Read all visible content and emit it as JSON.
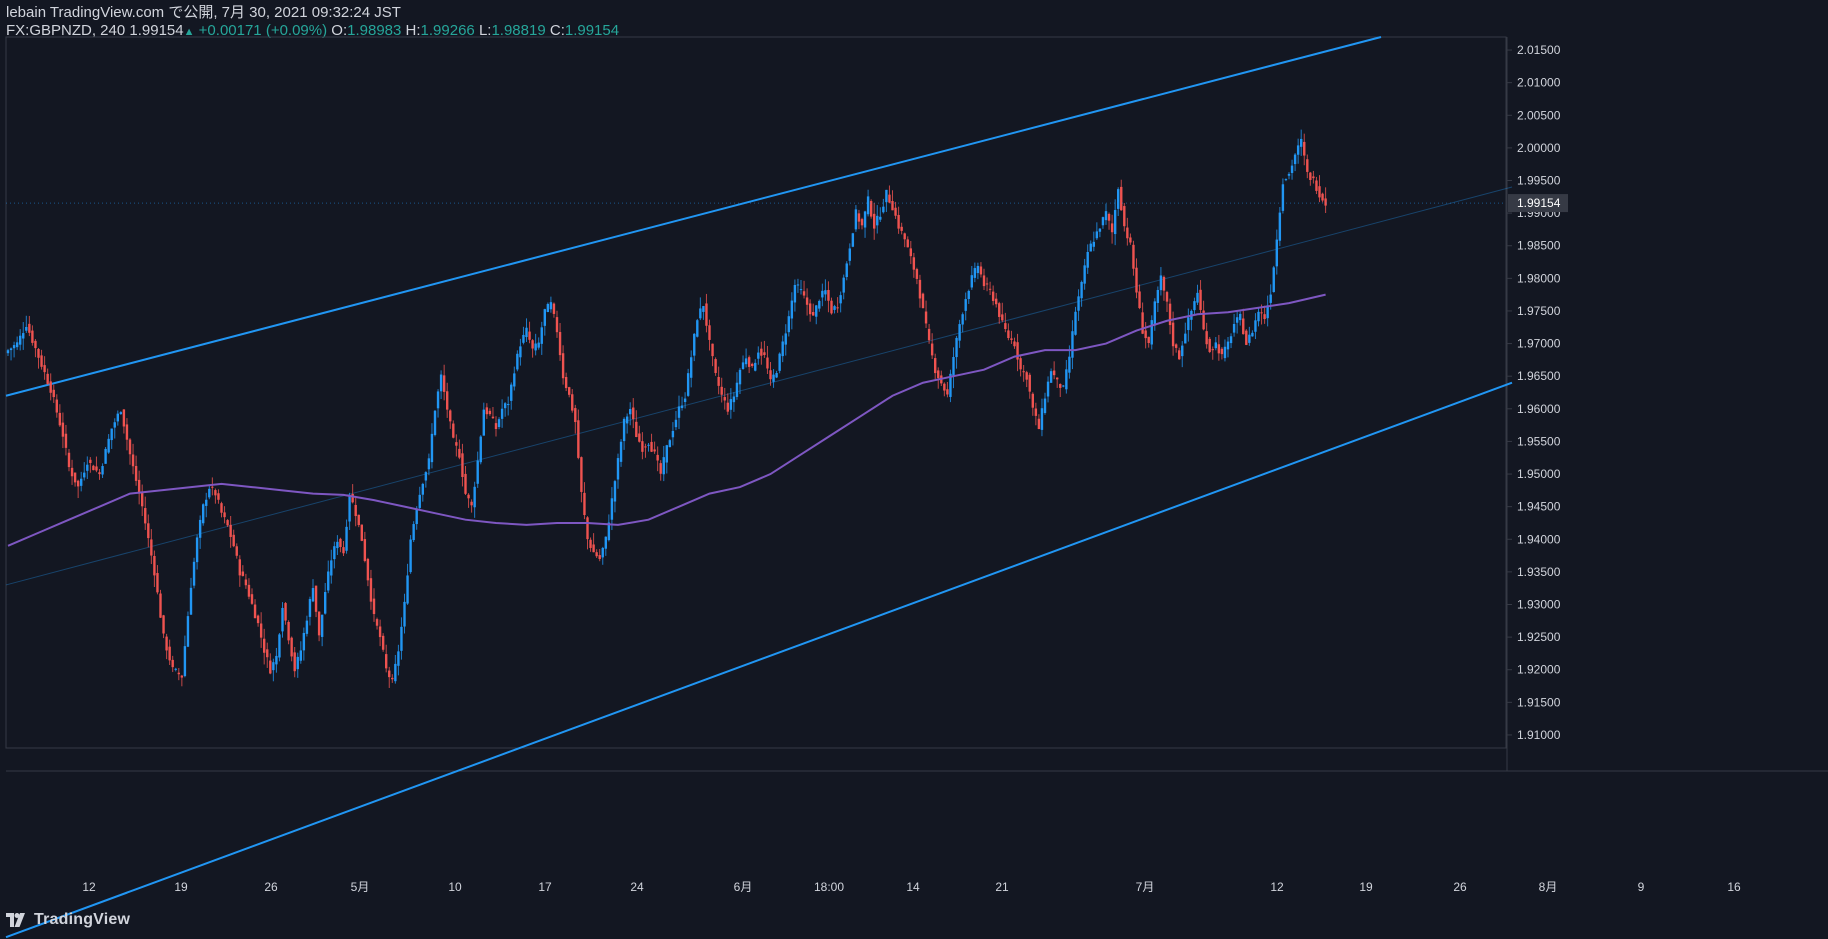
{
  "header": {
    "line1": "lebain TradingView.com で公開, 7月 30, 2021 09:32:24 JST",
    "symbol": "FX:GBPNZD, 240",
    "last": "1.99154",
    "change_arrow": "▲",
    "change": "+0.00171 (+0.09%)",
    "o_label": "O:",
    "o_value": "1.98983",
    "h_label": "H:",
    "h_value": "1.99266",
    "l_label": "L:",
    "l_value": "1.98819",
    "c_label": "C:",
    "c_value": "1.99154"
  },
  "footer": {
    "logo_text": "TradingView"
  },
  "colors": {
    "background": "#131722",
    "up": "#2196f3",
    "down": "#ef5350",
    "ma": "#7e57c2",
    "channel": "#2196f3",
    "axis_text": "#d1d4dc",
    "axis_line": "#363a45",
    "price_label_bg": "#363a45"
  },
  "chart_data": {
    "type": "candlestick",
    "symbol": "FX:GBPNZD",
    "timeframe": "240",
    "ylim": [
      1.908,
      2.017
    ],
    "y_ticks": [
      "1.91000",
      "1.91500",
      "1.92000",
      "1.92500",
      "1.93000",
      "1.93500",
      "1.94000",
      "1.94500",
      "1.95000",
      "1.95500",
      "1.96000",
      "1.96500",
      "1.97000",
      "1.97500",
      "1.98000",
      "1.98500",
      "1.99000",
      "1.99500",
      "2.00000",
      "2.00500",
      "2.01000",
      "2.01500"
    ],
    "x_ticks": [
      "12",
      "19",
      "26",
      "5月",
      "10",
      "17",
      "24",
      "6月",
      "18:00",
      "14",
      "21",
      "7月",
      "12",
      "19",
      "26",
      "8月",
      "9",
      "16"
    ],
    "current_price": "1.99154",
    "close_path": [
      [
        0,
        1.969
      ],
      [
        3,
        1.97
      ],
      [
        6,
        1.973
      ],
      [
        10,
        1.968
      ],
      [
        14,
        1.963
      ],
      [
        18,
        1.956
      ],
      [
        20,
        1.951
      ],
      [
        23,
        1.948
      ],
      [
        26,
        1.952
      ],
      [
        30,
        1.95
      ],
      [
        34,
        1.957
      ],
      [
        37,
        1.96
      ],
      [
        40,
        1.953
      ],
      [
        44,
        1.945
      ],
      [
        48,
        1.935
      ],
      [
        51,
        1.925
      ],
      [
        54,
        1.92
      ],
      [
        57,
        1.919
      ],
      [
        60,
        1.933
      ],
      [
        62,
        1.94
      ],
      [
        64,
        1.945
      ],
      [
        66,
        1.948
      ],
      [
        68,
        1.947
      ],
      [
        70,
        1.944
      ],
      [
        72,
        1.942
      ],
      [
        74,
        1.939
      ],
      [
        76,
        1.935
      ],
      [
        78,
        1.933
      ],
      [
        80,
        1.93
      ],
      [
        82,
        1.927
      ],
      [
        84,
        1.923
      ],
      [
        86,
        1.92
      ],
      [
        88,
        1.922
      ],
      [
        90,
        1.93
      ],
      [
        92,
        1.925
      ],
      [
        94,
        1.92
      ],
      [
        96,
        1.923
      ],
      [
        98,
        1.928
      ],
      [
        100,
        1.933
      ],
      [
        102,
        1.925
      ],
      [
        104,
        1.932
      ],
      [
        106,
        1.937
      ],
      [
        108,
        1.94
      ],
      [
        110,
        1.938
      ],
      [
        112,
        1.947
      ],
      [
        114,
        1.944
      ],
      [
        116,
        1.94
      ],
      [
        118,
        1.934
      ],
      [
        120,
        1.928
      ],
      [
        122,
        1.925
      ],
      [
        124,
        1.92
      ],
      [
        126,
        1.918
      ],
      [
        128,
        1.923
      ],
      [
        130,
        1.93
      ],
      [
        132,
        1.94
      ],
      [
        134,
        1.945
      ],
      [
        136,
        1.949
      ],
      [
        138,
        1.952
      ],
      [
        140,
        1.96
      ],
      [
        142,
        1.965
      ],
      [
        144,
        1.96
      ],
      [
        146,
        1.955
      ],
      [
        148,
        1.953
      ],
      [
        150,
        1.947
      ],
      [
        152,
        1.945
      ],
      [
        154,
        1.952
      ],
      [
        156,
        1.96
      ],
      [
        158,
        1.959
      ],
      [
        160,
        1.957
      ],
      [
        162,
        1.96
      ],
      [
        164,
        1.961
      ],
      [
        166,
        1.966
      ],
      [
        168,
        1.97
      ],
      [
        170,
        1.972
      ],
      [
        172,
        1.969
      ],
      [
        174,
        1.97
      ],
      [
        176,
        1.975
      ],
      [
        178,
        1.976
      ],
      [
        180,
        1.972
      ],
      [
        182,
        1.965
      ],
      [
        184,
        1.962
      ],
      [
        186,
        1.958
      ],
      [
        188,
        1.947
      ],
      [
        190,
        1.94
      ],
      [
        192,
        1.938
      ],
      [
        194,
        1.937
      ],
      [
        196,
        1.94
      ],
      [
        198,
        1.946
      ],
      [
        200,
        1.952
      ],
      [
        202,
        1.958
      ],
      [
        204,
        1.96
      ],
      [
        206,
        1.956
      ],
      [
        208,
        1.954
      ],
      [
        210,
        1.955
      ],
      [
        212,
        1.953
      ],
      [
        214,
        1.95
      ],
      [
        216,
        1.954
      ],
      [
        218,
        1.957
      ],
      [
        220,
        1.96
      ],
      [
        222,
        1.962
      ],
      [
        224,
        1.968
      ],
      [
        226,
        1.974
      ],
      [
        228,
        1.976
      ],
      [
        230,
        1.97
      ],
      [
        232,
        1.965
      ],
      [
        234,
        1.962
      ],
      [
        236,
        1.96
      ],
      [
        238,
        1.962
      ],
      [
        240,
        1.966
      ],
      [
        242,
        1.968
      ],
      [
        244,
        1.966
      ],
      [
        246,
        1.969
      ],
      [
        248,
        1.968
      ],
      [
        250,
        1.964
      ],
      [
        252,
        1.966
      ],
      [
        254,
        1.97
      ],
      [
        256,
        1.974
      ],
      [
        258,
        1.979
      ],
      [
        260,
        1.978
      ],
      [
        262,
        1.976
      ],
      [
        264,
        1.974
      ],
      [
        266,
        1.977
      ],
      [
        268,
        1.978
      ],
      [
        270,
        1.975
      ],
      [
        272,
        1.976
      ],
      [
        274,
        1.98
      ],
      [
        276,
        1.985
      ],
      [
        278,
        1.99
      ],
      [
        280,
        1.988
      ],
      [
        282,
        1.992
      ],
      [
        284,
        1.988
      ],
      [
        286,
        1.99
      ],
      [
        288,
        1.993
      ],
      [
        290,
        1.991
      ],
      [
        292,
        1.988
      ],
      [
        294,
        1.986
      ],
      [
        296,
        1.983
      ],
      [
        298,
        1.98
      ],
      [
        300,
        1.975
      ],
      [
        302,
        1.97
      ],
      [
        304,
        1.966
      ],
      [
        306,
        1.964
      ],
      [
        308,
        1.962
      ],
      [
        310,
        1.968
      ],
      [
        312,
        1.973
      ],
      [
        314,
        1.977
      ],
      [
        316,
        1.98
      ],
      [
        318,
        1.982
      ],
      [
        320,
        1.979
      ],
      [
        322,
        1.978
      ],
      [
        324,
        1.976
      ],
      [
        326,
        1.973
      ],
      [
        328,
        1.971
      ],
      [
        330,
        1.97
      ],
      [
        332,
        1.966
      ],
      [
        334,
        1.965
      ],
      [
        336,
        1.96
      ],
      [
        338,
        1.957
      ],
      [
        340,
        1.962
      ],
      [
        342,
        1.966
      ],
      [
        344,
        1.964
      ],
      [
        346,
        1.963
      ],
      [
        348,
        1.968
      ],
      [
        350,
        1.975
      ],
      [
        352,
        1.979
      ],
      [
        354,
        1.984
      ],
      [
        356,
        1.986
      ],
      [
        358,
        1.988
      ],
      [
        360,
        1.99
      ],
      [
        362,
        1.987
      ],
      [
        364,
        1.994
      ],
      [
        366,
        1.988
      ],
      [
        368,
        1.985
      ],
      [
        370,
        1.978
      ],
      [
        372,
        1.972
      ],
      [
        374,
        1.97
      ],
      [
        376,
        1.976
      ],
      [
        378,
        1.98
      ],
      [
        380,
        1.976
      ],
      [
        382,
        1.97
      ],
      [
        384,
        1.968
      ],
      [
        386,
        1.972
      ],
      [
        388,
        1.975
      ],
      [
        390,
        1.978
      ],
      [
        392,
        1.972
      ],
      [
        394,
        1.969
      ],
      [
        396,
        1.97
      ],
      [
        398,
        1.968
      ],
      [
        400,
        1.97
      ],
      [
        402,
        1.973
      ],
      [
        404,
        1.974
      ],
      [
        406,
        1.97
      ],
      [
        408,
        1.972
      ],
      [
        410,
        1.975
      ],
      [
        412,
        1.974
      ],
      [
        414,
        1.978
      ],
      [
        416,
        1.986
      ],
      [
        418,
        1.995
      ],
      [
        420,
        1.996
      ],
      [
        422,
        1.999
      ],
      [
        424,
        2.001
      ],
      [
        426,
        1.996
      ],
      [
        428,
        1.995
      ],
      [
        430,
        1.993
      ],
      [
        432,
        1.9915
      ]
    ],
    "ma_path": [
      [
        0,
        1.939
      ],
      [
        10,
        1.941
      ],
      [
        20,
        1.943
      ],
      [
        30,
        1.945
      ],
      [
        40,
        1.947
      ],
      [
        50,
        1.9475
      ],
      [
        60,
        1.948
      ],
      [
        70,
        1.9485
      ],
      [
        80,
        1.948
      ],
      [
        90,
        1.9475
      ],
      [
        100,
        1.947
      ],
      [
        110,
        1.9468
      ],
      [
        120,
        1.946
      ],
      [
        130,
        1.945
      ],
      [
        140,
        1.944
      ],
      [
        150,
        1.943
      ],
      [
        160,
        1.9425
      ],
      [
        170,
        1.9422
      ],
      [
        180,
        1.9425
      ],
      [
        190,
        1.9425
      ],
      [
        200,
        1.9422
      ],
      [
        210,
        1.943
      ],
      [
        220,
        1.945
      ],
      [
        230,
        1.947
      ],
      [
        240,
        1.948
      ],
      [
        250,
        1.95
      ],
      [
        260,
        1.953
      ],
      [
        270,
        1.956
      ],
      [
        280,
        1.959
      ],
      [
        290,
        1.962
      ],
      [
        300,
        1.964
      ],
      [
        310,
        1.965
      ],
      [
        320,
        1.966
      ],
      [
        330,
        1.968
      ],
      [
        340,
        1.969
      ],
      [
        350,
        1.969
      ],
      [
        360,
        1.97
      ],
      [
        370,
        1.972
      ],
      [
        380,
        1.9735
      ],
      [
        390,
        1.9745
      ],
      [
        400,
        1.9748
      ],
      [
        410,
        1.9755
      ],
      [
        420,
        1.9762
      ],
      [
        432,
        1.9775
      ]
    ],
    "channel_upper": [
      [
        0,
        1.962
      ],
      [
        1375,
        2.017
      ]
    ],
    "channel_lower": [
      [
        0,
        1.879
      ],
      [
        1506,
        1.964
      ]
    ],
    "channel_mid": [
      [
        0,
        1.933
      ],
      [
        1506,
        1.994
      ]
    ]
  }
}
